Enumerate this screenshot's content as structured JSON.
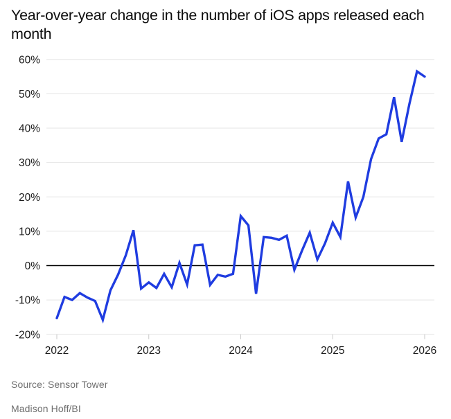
{
  "header": {
    "title": "Year-over-year change in the number of iOS apps released each month"
  },
  "footer": {
    "source": "Source: Sensor Tower",
    "byline": "Madison Hoff/BI"
  },
  "colors": {
    "line": "#1f3ce0",
    "grid": "#e4e4e4",
    "zero_line": "#000000",
    "tick": "#c9c9c9",
    "axis_text": "#1a1a1a",
    "muted_text": "#6f6f6f",
    "background": "#ffffff"
  },
  "chart_data": {
    "type": "line",
    "title": "Year-over-year change in the number of iOS apps released each month",
    "xlabel": "",
    "ylabel": "",
    "unit": "%",
    "grid": "horizontal",
    "legend": "none",
    "y_axis": {
      "ticks": [
        60,
        50,
        40,
        30,
        20,
        10,
        0,
        -10,
        -20
      ],
      "tick_suffix": "%",
      "range": [
        -20,
        60
      ]
    },
    "x_axis": {
      "tick_labels": [
        "2022",
        "2023",
        "2024",
        "2025",
        "2026"
      ],
      "tick_month_index": [
        0,
        12,
        24,
        36,
        48
      ]
    },
    "series": [
      {
        "name": "YoY change in iOS apps released",
        "months": [
          "Jan 2022",
          "Feb 2022",
          "Mar 2022",
          "Apr 2022",
          "May 2022",
          "Jun 2022",
          "Jul 2022",
          "Aug 2022",
          "Sep 2022",
          "Oct 2022",
          "Nov 2022",
          "Dec 2022",
          "Jan 2023",
          "Feb 2023",
          "Mar 2023",
          "Apr 2023",
          "May 2023",
          "Jun 2023",
          "Jul 2023",
          "Aug 2023",
          "Sep 2023",
          "Oct 2023",
          "Nov 2023",
          "Dec 2023",
          "Jan 2024",
          "Feb 2024",
          "Mar 2024",
          "Apr 2024",
          "May 2024",
          "Jun 2024",
          "Jul 2024",
          "Aug 2024",
          "Sep 2024",
          "Oct 2024",
          "Nov 2024",
          "Dec 2024",
          "Jan 2025",
          "Feb 2025",
          "Mar 2025",
          "Apr 2025",
          "May 2025",
          "Jun 2025",
          "Jul 2025",
          "Aug 2025",
          "Sep 2025",
          "Oct 2025",
          "Nov 2025",
          "Dec 2025",
          "Jan 2026"
        ],
        "values": [
          -15.3,
          -9.1,
          -10.0,
          -8.0,
          -9.3,
          -10.3,
          -15.8,
          -7.2,
          -2.6,
          3.0,
          10.3,
          -6.7,
          -4.9,
          -6.5,
          -2.4,
          -6.3,
          0.8,
          -5.5,
          5.9,
          6.1,
          -5.6,
          -2.7,
          -3.2,
          -2.4,
          14.4,
          11.7,
          -8.2,
          8.3,
          8.1,
          7.5,
          8.7,
          -1.2,
          4.4,
          9.6,
          1.8,
          6.5,
          12.5,
          8.3,
          24.5,
          14.0,
          20.0,
          31.0,
          37.0,
          38.2,
          49.0,
          36.0,
          47.0,
          56.5,
          55.0
        ]
      }
    ]
  }
}
